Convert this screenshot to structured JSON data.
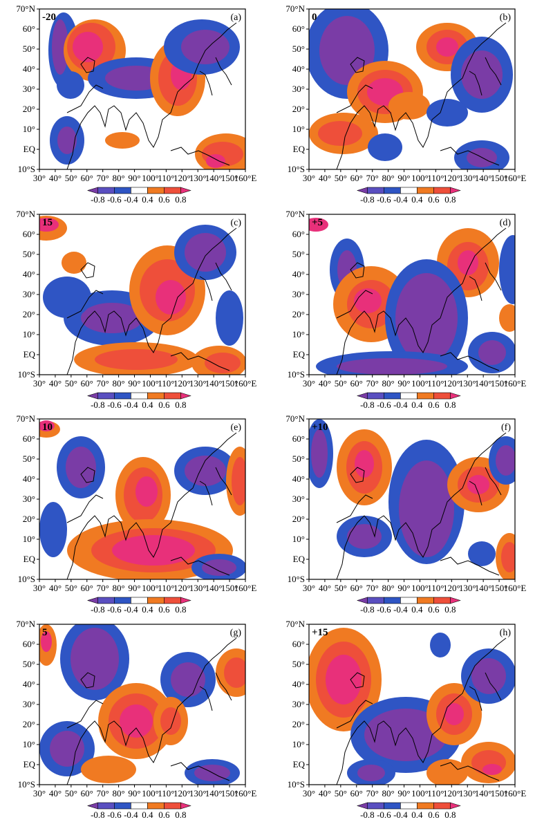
{
  "figure": {
    "lon_ticks": [
      "30°",
      "40°",
      "50°",
      "60°",
      "70°",
      "80°",
      "90°",
      "100°",
      "110°",
      "120°",
      "130°",
      "140°",
      "150°",
      "160°E"
    ],
    "lat_ticks": [
      "70°N",
      "60°",
      "50°",
      "40°",
      "30°",
      "20°",
      "10°",
      "EQ",
      "10°S"
    ],
    "colorbar": {
      "labels": [
        "-0.8",
        "-0.6",
        "-0.4",
        "0.4",
        "0.6",
        "0.8"
      ],
      "colors": [
        "#7a3ca6",
        "#5a4fc0",
        "#2f55c4",
        "#ffffff",
        "#f07a22",
        "#ee4f3a",
        "#e8307a"
      ]
    },
    "panels": [
      {
        "tag": "(a)",
        "lag": "-20"
      },
      {
        "tag": "(b)",
        "lag": "0"
      },
      {
        "tag": "(c)",
        "lag": "15"
      },
      {
        "tag": "(d)",
        "lag": "+5"
      },
      {
        "tag": "(e)",
        "lag": "10"
      },
      {
        "tag": "(f)",
        "lag": "+10"
      },
      {
        "tag": "(g)",
        "lag": "5"
      },
      {
        "tag": "(h)",
        "lag": "+15"
      }
    ]
  }
}
